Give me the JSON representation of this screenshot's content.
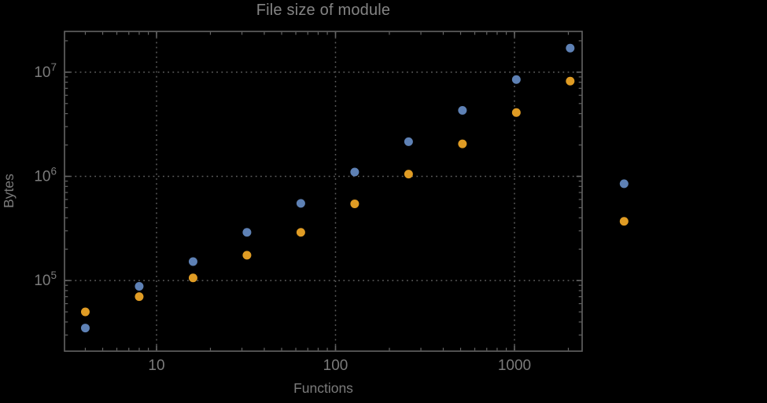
{
  "chart_data": {
    "type": "scatter",
    "title": "File size of module",
    "xlabel": "Functions",
    "ylabel": "Bytes",
    "x_scale": "log",
    "y_scale": "log",
    "grid": "dotted",
    "legend": "none",
    "xlim": [
      3.06,
      2388
    ],
    "ylim": [
      21000,
      24600000
    ],
    "x_major_ticks": [
      {
        "value": 10,
        "label": "10"
      },
      {
        "value": 100,
        "label": "100"
      },
      {
        "value": 1000,
        "label": "1000"
      }
    ],
    "y_major_ticks": [
      {
        "value": 100000,
        "base": "10",
        "exp": "5"
      },
      {
        "value": 1000000,
        "base": "10",
        "exp": "6"
      },
      {
        "value": 10000000,
        "base": "10",
        "exp": "7"
      }
    ],
    "x": [
      4,
      8,
      16,
      32,
      64,
      128,
      256,
      512,
      1024,
      2048,
      4096
    ],
    "series": [
      {
        "name": "blue-series",
        "color": "#5e81b5",
        "values": [
          35000,
          88000,
          152000,
          290000,
          550000,
          1100000,
          2150000,
          4300000,
          8500000,
          17000000,
          850000
        ]
      },
      {
        "name": "orange-series",
        "color": "#e09c24",
        "values": [
          50000,
          70000,
          106000,
          175000,
          290000,
          545000,
          1050000,
          2050000,
          4100000,
          8200000,
          370000
        ]
      }
    ],
    "styles": {
      "background": "#000000",
      "frame_color": "#646464",
      "grid_color": "#5e5e5e",
      "tick_label_color": "#7b7b7b",
      "title_color": "#848484",
      "axis_label_color": "#7b7b7b"
    }
  }
}
